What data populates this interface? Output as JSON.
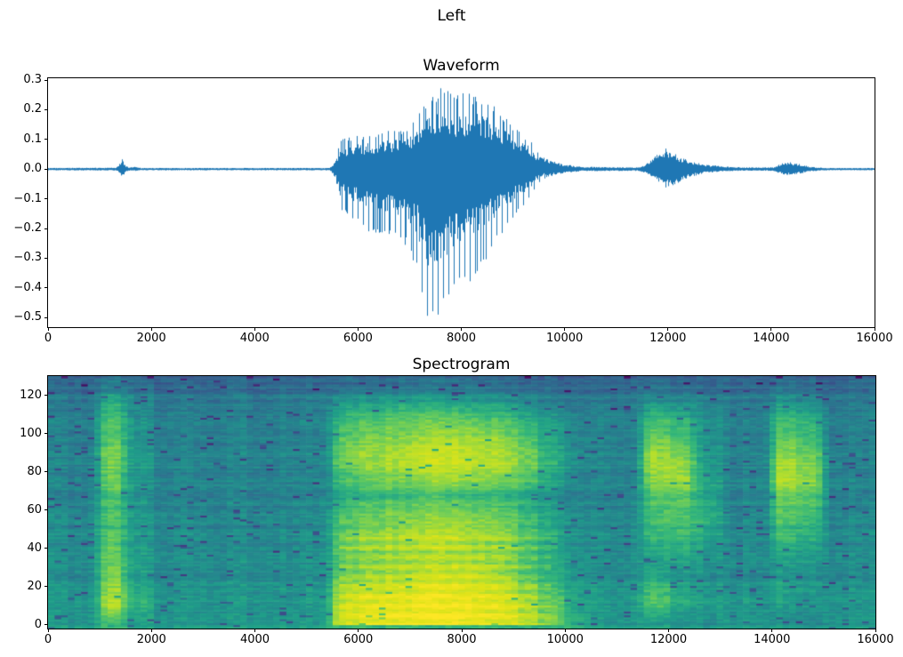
{
  "figure": {
    "suptitle": "Left",
    "background": "#ffffff",
    "text_color": "#000000"
  },
  "chart_data": [
    {
      "type": "line",
      "title": "Waveform",
      "xlabel": "",
      "ylabel": "",
      "legend": "none",
      "grid": "off",
      "line_color": "#1f77b4",
      "xlim": [
        0,
        16000
      ],
      "ylim": [
        -0.532,
        0.306
      ],
      "xticks": {
        "values": [
          0,
          2000,
          4000,
          6000,
          8000,
          10000,
          12000,
          14000,
          16000
        ],
        "labels": [
          "0",
          "2000",
          "4000",
          "6000",
          "8000",
          "10000",
          "12000",
          "14000",
          "16000"
        ]
      },
      "yticks": {
        "values": [
          0.3,
          0.2,
          0.1,
          0.0,
          -0.1,
          -0.2,
          -0.3,
          -0.4,
          -0.5
        ],
        "labels": [
          "0.3",
          "0.2",
          "0.1",
          "0.0",
          "−0.1",
          "−0.2",
          "−0.3",
          "−0.4",
          "−0.5"
        ]
      },
      "series_name": "audio amplitude vs sample index",
      "envelope_points_format": "[sample_x, positive_peak_amplitude, negative_peak_amplitude]",
      "envelope_points": [
        [
          0,
          0.004,
          0.004
        ],
        [
          1320,
          0.005,
          0.005
        ],
        [
          1400,
          0.02,
          0.014
        ],
        [
          1440,
          0.034,
          0.03
        ],
        [
          1500,
          0.012,
          0.01
        ],
        [
          1560,
          0.006,
          0.006
        ],
        [
          1700,
          0.008,
          0.006
        ],
        [
          1800,
          0.004,
          0.004
        ],
        [
          5450,
          0.004,
          0.004
        ],
        [
          5570,
          0.03,
          0.03
        ],
        [
          5650,
          0.1,
          0.14
        ],
        [
          5900,
          0.11,
          0.17
        ],
        [
          6200,
          0.12,
          0.21
        ],
        [
          6600,
          0.13,
          0.23
        ],
        [
          6950,
          0.14,
          0.26
        ],
        [
          7150,
          0.18,
          0.36
        ],
        [
          7350,
          0.23,
          0.52
        ],
        [
          7600,
          0.28,
          0.5
        ],
        [
          7850,
          0.25,
          0.43
        ],
        [
          8100,
          0.26,
          0.39
        ],
        [
          8400,
          0.25,
          0.34
        ],
        [
          8650,
          0.22,
          0.26
        ],
        [
          8900,
          0.17,
          0.19
        ],
        [
          9100,
          0.13,
          0.15
        ],
        [
          9300,
          0.11,
          0.11
        ],
        [
          9500,
          0.06,
          0.05
        ],
        [
          9700,
          0.03,
          0.025
        ],
        [
          10000,
          0.016,
          0.013
        ],
        [
          10350,
          0.008,
          0.007
        ],
        [
          11450,
          0.006,
          0.006
        ],
        [
          11650,
          0.025,
          0.02
        ],
        [
          11850,
          0.06,
          0.05
        ],
        [
          11950,
          0.075,
          0.065
        ],
        [
          12100,
          0.055,
          0.06
        ],
        [
          12250,
          0.04,
          0.04
        ],
        [
          12450,
          0.028,
          0.026
        ],
        [
          12700,
          0.016,
          0.014
        ],
        [
          13100,
          0.009,
          0.008
        ],
        [
          13500,
          0.006,
          0.005
        ],
        [
          14050,
          0.006,
          0.006
        ],
        [
          14200,
          0.02,
          0.017
        ],
        [
          14350,
          0.024,
          0.021
        ],
        [
          14550,
          0.018,
          0.016
        ],
        [
          14750,
          0.008,
          0.008
        ],
        [
          15050,
          0.004,
          0.004
        ],
        [
          16000,
          0.004,
          0.004
        ]
      ]
    },
    {
      "type": "heatmap",
      "title": "Spectrogram",
      "xlabel": "",
      "ylabel": "",
      "grid": "off",
      "colormap": "viridis",
      "colormap_stops": [
        "#440154",
        "#482878",
        "#3e4a89",
        "#31688e",
        "#26828e",
        "#1f9e89",
        "#35b779",
        "#6dcd59",
        "#b4de2c",
        "#dfe318",
        "#fde725"
      ],
      "xlim": [
        0,
        16000
      ],
      "ylim": [
        -2,
        130
      ],
      "freq_bins": 129,
      "time_bins": 125,
      "xticks": {
        "values": [
          0,
          2000,
          4000,
          6000,
          8000,
          10000,
          12000,
          14000,
          16000
        ],
        "labels": [
          "0",
          "2000",
          "4000",
          "6000",
          "8000",
          "10000",
          "12000",
          "14000",
          "16000"
        ]
      },
      "yticks": {
        "values": [
          0,
          20,
          40,
          60,
          80,
          100,
          120
        ],
        "labels": [
          "0",
          "20",
          "40",
          "60",
          "80",
          "100",
          "120"
        ]
      },
      "intensity_grid_format": "rows bottom(freq 0) to top(freq ~129), 32 time columns of 500 samples each, intensity 0-100",
      "intensity_rows_bottom_to_top": [
        [
          48,
          48,
          62,
          50,
          48,
          48,
          48,
          48,
          48,
          48,
          48,
          88,
          94,
          96,
          98,
          98,
          96,
          92,
          86,
          74,
          56,
          48,
          48,
          50,
          48,
          46,
          48,
          48,
          46,
          45,
          48,
          48
        ],
        [
          46,
          46,
          78,
          55,
          46,
          46,
          46,
          46,
          46,
          46,
          46,
          86,
          92,
          92,
          96,
          96,
          94,
          90,
          82,
          68,
          52,
          46,
          46,
          64,
          56,
          48,
          46,
          46,
          48,
          46,
          46,
          46
        ],
        [
          45,
          45,
          74,
          52,
          45,
          45,
          45,
          45,
          45,
          45,
          45,
          80,
          86,
          88,
          90,
          92,
          90,
          86,
          76,
          62,
          50,
          45,
          45,
          62,
          54,
          47,
          45,
          45,
          50,
          47,
          45,
          45
        ],
        [
          44,
          44,
          70,
          50,
          44,
          44,
          44,
          44,
          44,
          44,
          44,
          72,
          78,
          80,
          84,
          86,
          84,
          78,
          70,
          58,
          48,
          44,
          44,
          52,
          50,
          46,
          44,
          44,
          48,
          46,
          44,
          44
        ],
        [
          43,
          43,
          66,
          48,
          43,
          43,
          43,
          43,
          43,
          43,
          43,
          68,
          74,
          76,
          78,
          80,
          78,
          74,
          66,
          54,
          46,
          43,
          43,
          50,
          52,
          46,
          43,
          43,
          50,
          48,
          43,
          43
        ],
        [
          42,
          42,
          64,
          47,
          42,
          42,
          42,
          42,
          42,
          42,
          42,
          70,
          78,
          80,
          82,
          84,
          80,
          76,
          68,
          55,
          45,
          42,
          42,
          56,
          60,
          50,
          42,
          42,
          58,
          54,
          42,
          42
        ],
        [
          42,
          42,
          62,
          46,
          42,
          42,
          42,
          42,
          42,
          42,
          42,
          66,
          72,
          74,
          76,
          78,
          76,
          72,
          64,
          52,
          44,
          42,
          42,
          60,
          64,
          54,
          42,
          42,
          62,
          58,
          42,
          42
        ],
        [
          41,
          41,
          62,
          46,
          41,
          41,
          41,
          41,
          41,
          41,
          41,
          62,
          68,
          70,
          72,
          72,
          70,
          66,
          60,
          50,
          43,
          41,
          41,
          62,
          66,
          56,
          41,
          41,
          66,
          62,
          41,
          41
        ],
        [
          41,
          41,
          64,
          46,
          41,
          41,
          41,
          41,
          41,
          41,
          41,
          56,
          60,
          62,
          64,
          64,
          62,
          60,
          56,
          48,
          42,
          41,
          41,
          66,
          70,
          54,
          41,
          41,
          72,
          68,
          41,
          41
        ],
        [
          40,
          40,
          68,
          46,
          40,
          40,
          40,
          40,
          40,
          40,
          40,
          62,
          70,
          72,
          76,
          78,
          76,
          72,
          66,
          52,
          42,
          40,
          40,
          74,
          78,
          52,
          40,
          40,
          80,
          74,
          40,
          40
        ],
        [
          40,
          40,
          70,
          47,
          40,
          40,
          40,
          40,
          40,
          40,
          40,
          70,
          78,
          80,
          84,
          86,
          84,
          80,
          72,
          56,
          44,
          40,
          40,
          78,
          76,
          50,
          40,
          40,
          78,
          72,
          40,
          40
        ],
        [
          40,
          40,
          68,
          46,
          40,
          40,
          40,
          40,
          40,
          40,
          40,
          70,
          76,
          78,
          82,
          84,
          82,
          78,
          70,
          54,
          43,
          40,
          40,
          74,
          70,
          48,
          40,
          40,
          72,
          66,
          40,
          40
        ],
        [
          39,
          39,
          64,
          45,
          39,
          39,
          39,
          39,
          39,
          39,
          39,
          64,
          70,
          70,
          74,
          76,
          74,
          70,
          62,
          50,
          42,
          39,
          39,
          66,
          62,
          46,
          39,
          39,
          64,
          60,
          39,
          39
        ],
        [
          38,
          38,
          60,
          43,
          38,
          38,
          38,
          38,
          38,
          38,
          38,
          58,
          62,
          64,
          66,
          66,
          64,
          60,
          54,
          46,
          40,
          38,
          38,
          58,
          56,
          44,
          38,
          38,
          58,
          54,
          38,
          38
        ],
        [
          36,
          36,
          52,
          40,
          36,
          36,
          36,
          36,
          36,
          36,
          36,
          46,
          48,
          50,
          50,
          50,
          48,
          46,
          42,
          38,
          37,
          36,
          36,
          44,
          44,
          40,
          36,
          36,
          44,
          42,
          36,
          36
        ],
        [
          30,
          30,
          36,
          31,
          30,
          30,
          30,
          30,
          30,
          30,
          30,
          32,
          33,
          33,
          34,
          34,
          33,
          32,
          31,
          30,
          30,
          30,
          30,
          32,
          32,
          30,
          30,
          30,
          32,
          31,
          30,
          30
        ]
      ]
    }
  ]
}
